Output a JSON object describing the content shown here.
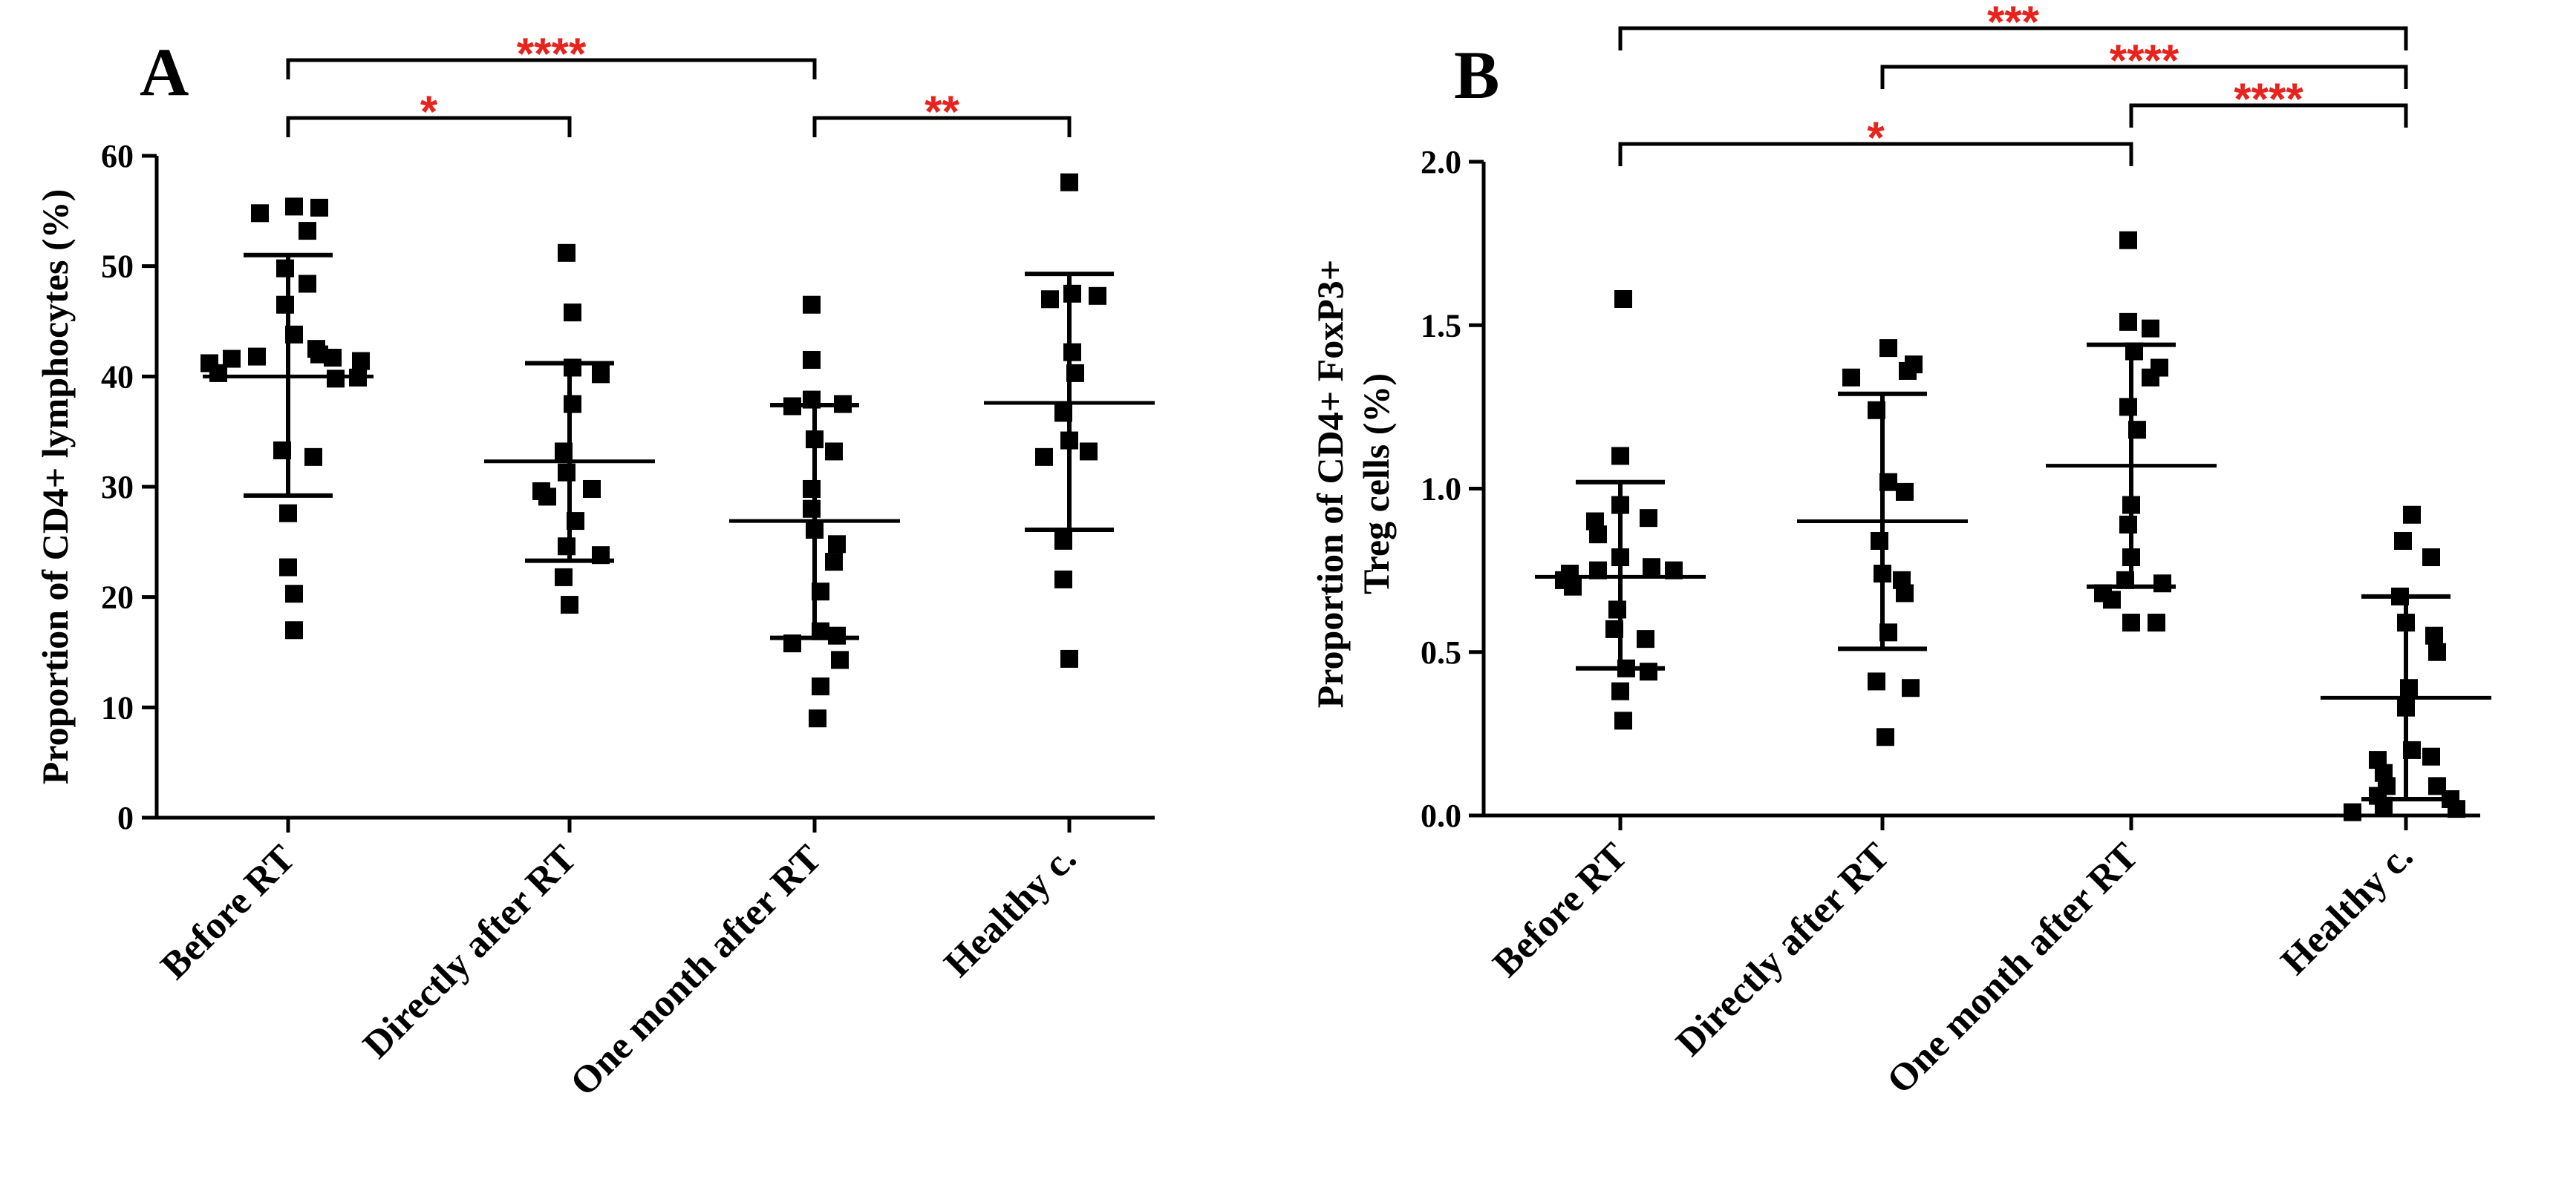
{
  "colors": {
    "axis": "#000000",
    "point": "#000000",
    "significance": "#e8231e"
  },
  "chart_data": [
    {
      "type": "scatter",
      "panel_label": "A",
      "ylabel": "Proportion of CD4+ lymphocytes (%)",
      "ylabel_lines": [
        "Proportion of CD4+ lymphocytes (%)"
      ],
      "ylim": [
        0,
        60
      ],
      "yticks": [
        0,
        10,
        20,
        30,
        40,
        50,
        60
      ],
      "ytick_labels": [
        "0",
        "10",
        "20",
        "30",
        "40",
        "50",
        "60"
      ],
      "categories": [
        "Before RT",
        "Directly after RT",
        "One month after RT",
        "Healthy c."
      ],
      "series": [
        {
          "name": "Before RT",
          "mean": 40,
          "sd_upper": 51,
          "sd_lower": 29.2,
          "values": [
            55.4,
            55.3,
            54.8,
            53.2,
            49.8,
            48.4,
            46.5,
            43.8,
            42.5,
            42,
            41.8,
            41.7,
            41.6,
            41.4,
            41.2,
            40.3,
            39.8,
            39.9,
            33.3,
            32.7,
            27.6,
            22.7,
            20.3,
            17
          ]
        },
        {
          "name": "Directly after RT",
          "mean": 32.3,
          "sd_upper": 41.2,
          "sd_lower": 23.3,
          "values": [
            51.2,
            45.8,
            40.8,
            40.2,
            37.5,
            33.2,
            31.3,
            29.8,
            29.6,
            29.1,
            26.9,
            24.6,
            23.8,
            21.8,
            19.3
          ]
        },
        {
          "name": "One month after RT",
          "mean": 26.9,
          "sd_upper": 37.4,
          "sd_lower": 16.3,
          "values": [
            46.5,
            41.5,
            37.9,
            37.5,
            37.3,
            34.3,
            33.2,
            29.8,
            28,
            26.1,
            24.8,
            23.2,
            20.5,
            16.9,
            16.5,
            15.8,
            14.3,
            11.9,
            9
          ]
        },
        {
          "name": "Healthy c.",
          "mean": 37.6,
          "sd_upper": 49.3,
          "sd_lower": 26.1,
          "values": [
            57.6,
            47.5,
            47.3,
            47,
            42.2,
            40.3,
            36.7,
            34.2,
            33.2,
            32.7,
            25.1,
            21.6,
            14.4
          ]
        }
      ],
      "significance": [
        {
          "from": 0,
          "to": 2,
          "label": "****",
          "level": 2
        },
        {
          "from": 0,
          "to": 1,
          "label": "*",
          "level": 1
        },
        {
          "from": 2,
          "to": 3,
          "label": "**",
          "level": 1
        }
      ]
    },
    {
      "type": "scatter",
      "panel_label": "B",
      "ylabel": "Proportion of CD4+ FoxP3+ Treg cells (%)",
      "ylabel_lines": [
        "Proportion of CD4+ FoxP3+",
        "Treg cells (%)"
      ],
      "ylim": [
        0,
        2.0
      ],
      "yticks": [
        0,
        0.5,
        1.0,
        1.5,
        2.0
      ],
      "ytick_labels": [
        "0.0",
        "0.5",
        "1.0",
        "1.5",
        "2.0"
      ],
      "categories": [
        "Before RT",
        "Directly after RT",
        "One month after RT",
        "Healthy c."
      ],
      "series": [
        {
          "name": "Before RT",
          "mean": 0.73,
          "sd_upper": 1.02,
          "sd_lower": 0.45,
          "values": [
            1.58,
            1.1,
            0.95,
            0.91,
            0.9,
            0.86,
            0.79,
            0.76,
            0.75,
            0.75,
            0.74,
            0.72,
            0.7,
            0.63,
            0.57,
            0.54,
            0.45,
            0.44,
            0.38,
            0.29
          ]
        },
        {
          "name": "Directly after RT",
          "mean": 0.9,
          "sd_upper": 1.29,
          "sd_lower": 0.51,
          "values": [
            1.43,
            1.38,
            1.36,
            1.34,
            1.24,
            1.02,
            0.99,
            0.84,
            0.74,
            0.72,
            0.68,
            0.56,
            0.41,
            0.39,
            0.24
          ]
        },
        {
          "name": "One month after RT",
          "mean": 1.07,
          "sd_upper": 1.44,
          "sd_lower": 0.7,
          "values": [
            1.76,
            1.51,
            1.49,
            1.42,
            1.37,
            1.34,
            1.25,
            1.18,
            0.95,
            0.89,
            0.79,
            0.72,
            0.71,
            0.68,
            0.66,
            0.59,
            0.59
          ]
        },
        {
          "name": "Healthy c.",
          "mean": 0.36,
          "sd_upper": 0.67,
          "sd_lower": 0.05,
          "values": [
            0.92,
            0.84,
            0.79,
            0.67,
            0.59,
            0.55,
            0.5,
            0.39,
            0.33,
            0.2,
            0.18,
            0.17,
            0.13,
            0.09,
            0.09,
            0.06,
            0.05,
            0.03,
            0.02,
            0.01
          ]
        }
      ],
      "significance": [
        {
          "from": 0,
          "to": 3,
          "label": "***",
          "level": 4
        },
        {
          "from": 1,
          "to": 3,
          "label": "****",
          "level": 3
        },
        {
          "from": 2,
          "to": 3,
          "label": "****",
          "level": 2
        },
        {
          "from": 0,
          "to": 2,
          "label": "*",
          "level": 1
        }
      ]
    }
  ]
}
